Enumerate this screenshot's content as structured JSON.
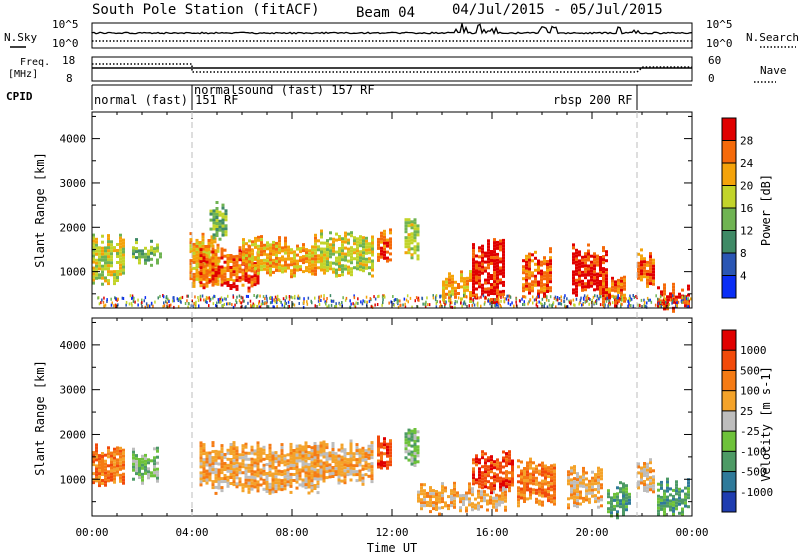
{
  "header": {
    "station": "South Pole Station (fitACF)",
    "beam": "Beam 04",
    "date_range": "04/Jul/2015 - 05/Jul/2015"
  },
  "noise_panel": {
    "left_label": "N.Sky",
    "right_label": "N.Search",
    "left_ticks": [
      "10^5",
      "10^0"
    ],
    "right_ticks": [
      "10^5",
      "10^0"
    ]
  },
  "freq_panel": {
    "left_label_line1": "Freq.",
    "left_label_line2": "[MHz]",
    "right_label": "Nave",
    "left_ticks": [
      "18",
      "8"
    ],
    "right_ticks": [
      "60",
      "0"
    ]
  },
  "cpid_panel": {
    "label": "CPID",
    "modes": [
      {
        "text": "normal (fast) 151 RF",
        "start_hour": 0
      },
      {
        "text": "normalsound (fast) 157 RF",
        "start_hour": 4.0
      },
      {
        "text": "rbsp 200 RF",
        "start_hour": 21.8
      }
    ]
  },
  "chart_data": [
    {
      "type": "heatmap",
      "name": "power-panel",
      "ylabel": "Slant Range [km]",
      "xlabel": "",
      "x_range_hours": [
        0,
        24
      ],
      "ylim": [
        180,
        4600
      ],
      "ytick_values": [
        1000,
        2000,
        3000,
        4000
      ],
      "ytick_labels": [
        "1000",
        "2000",
        "3000",
        "4000"
      ],
      "colorbar": {
        "label": "Power [dB]",
        "tick_labels": [
          "4",
          "8",
          "12",
          "16",
          "20",
          "24",
          "28"
        ],
        "colors": [
          "#0a2ef5",
          "#2a56b4",
          "#3f8a66",
          "#6fb352",
          "#c2d42a",
          "#f4a30a",
          "#f56a0a",
          "#e00000"
        ]
      },
      "echo_regions": [
        {
          "t0": 0.0,
          "t1": 1.3,
          "r0": 850,
          "r1": 1700,
          "level": 4
        },
        {
          "t0": 1.6,
          "t1": 2.7,
          "r0": 1250,
          "r1": 1600,
          "level": 3
        },
        {
          "t0": 3.9,
          "t1": 5.1,
          "r0": 750,
          "r1": 1750,
          "level": 5
        },
        {
          "t0": 4.3,
          "t1": 6.6,
          "r0": 700,
          "r1": 1500,
          "level": 6
        },
        {
          "t0": 4.7,
          "t1": 5.4,
          "r0": 1800,
          "r1": 2500,
          "level": 3
        },
        {
          "t0": 6.0,
          "t1": 9.0,
          "r0": 1000,
          "r1": 1700,
          "level": 5
        },
        {
          "t0": 9.0,
          "t1": 11.2,
          "r0": 1000,
          "r1": 1800,
          "level": 4
        },
        {
          "t0": 11.4,
          "t1": 11.9,
          "r0": 1300,
          "r1": 1900,
          "level": 6
        },
        {
          "t0": 12.5,
          "t1": 13.1,
          "r0": 1400,
          "r1": 2200,
          "level": 4
        },
        {
          "t0": 14.0,
          "t1": 15.2,
          "r0": 400,
          "r1": 900,
          "level": 5
        },
        {
          "t0": 15.2,
          "t1": 16.5,
          "r0": 400,
          "r1": 1600,
          "level": 7
        },
        {
          "t0": 17.2,
          "t1": 18.4,
          "r0": 500,
          "r1": 1400,
          "level": 6
        },
        {
          "t0": 19.2,
          "t1": 20.6,
          "r0": 600,
          "r1": 1500,
          "level": 7
        },
        {
          "t0": 20.4,
          "t1": 21.3,
          "r0": 300,
          "r1": 800,
          "level": 6
        },
        {
          "t0": 21.8,
          "t1": 22.5,
          "r0": 800,
          "r1": 1400,
          "level": 6
        },
        {
          "t0": 22.6,
          "t1": 23.9,
          "r0": 250,
          "r1": 600,
          "level": 7
        }
      ]
    },
    {
      "type": "heatmap",
      "name": "velocity-panel",
      "ylabel": "Slant Range [km]",
      "xlabel": "Time UT",
      "x_range_hours": [
        0,
        24
      ],
      "xtick_labels": [
        "00:00",
        "04:00",
        "08:00",
        "12:00",
        "16:00",
        "20:00",
        "00:00"
      ],
      "ylim": [
        180,
        4600
      ],
      "ytick_values": [
        1000,
        2000,
        3000,
        4000
      ],
      "ytick_labels": [
        "1000",
        "2000",
        "3000",
        "4000"
      ],
      "colorbar": {
        "label": "Velocity [m s-1]",
        "tick_labels": [
          "1000",
          "500",
          "100",
          "25",
          "-25",
          "-100",
          "-500",
          "-1000"
        ],
        "colors": [
          "#1f3db0",
          "#2f7a9a",
          "#4d9a65",
          "#6ec23a",
          "#bdbdbd",
          "#f4a32a",
          "#f57b14",
          "#f24a0a",
          "#e00000"
        ]
      },
      "echo_regions": [
        {
          "t0": 0.0,
          "t1": 1.3,
          "r0": 900,
          "r1": 1700,
          "level": 6
        },
        {
          "t0": 1.6,
          "t1": 2.6,
          "r0": 1000,
          "r1": 1600,
          "level": 3
        },
        {
          "t0": 4.3,
          "t1": 9.0,
          "r0": 800,
          "r1": 1700,
          "level": 5
        },
        {
          "t0": 8.5,
          "t1": 11.2,
          "r0": 1000,
          "r1": 1750,
          "level": 5
        },
        {
          "t0": 11.4,
          "t1": 11.9,
          "r0": 1300,
          "r1": 1900,
          "level": 7
        },
        {
          "t0": 12.5,
          "t1": 13.1,
          "r0": 1400,
          "r1": 2200,
          "level": 3
        },
        {
          "t0": 13.0,
          "t1": 16.5,
          "r0": 350,
          "r1": 800,
          "level": 5
        },
        {
          "t0": 15.2,
          "t1": 16.8,
          "r0": 800,
          "r1": 1500,
          "level": 7
        },
        {
          "t0": 17.0,
          "t1": 18.5,
          "r0": 500,
          "r1": 1400,
          "level": 6
        },
        {
          "t0": 19.0,
          "t1": 20.4,
          "r0": 500,
          "r1": 1200,
          "level": 5
        },
        {
          "t0": 20.6,
          "t1": 21.5,
          "r0": 250,
          "r1": 800,
          "level": 2
        },
        {
          "t0": 21.8,
          "t1": 22.5,
          "r0": 800,
          "r1": 1400,
          "level": 5
        },
        {
          "t0": 22.6,
          "t1": 23.9,
          "r0": 250,
          "r1": 900,
          "level": 2
        }
      ]
    }
  ]
}
